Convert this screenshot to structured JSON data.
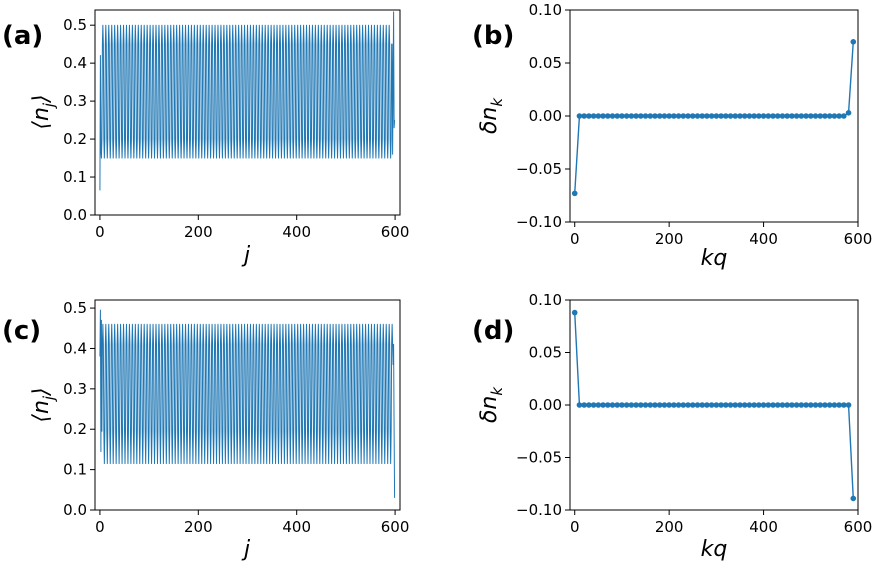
{
  "colors": {
    "series": "#1f77b4",
    "axis": "#000000",
    "background": "#ffffff"
  },
  "chart_data": [
    {
      "panel_label": "(a)",
      "type": "line",
      "xlabel": "j",
      "ylabel": "⟨n_j⟩",
      "xlim": [
        -10,
        610
      ],
      "ylim": [
        0.0,
        0.54
      ],
      "xticks": [
        0,
        200,
        400,
        600
      ],
      "xtick_labels": [
        "0",
        "200",
        "400",
        "600"
      ],
      "yticks": [
        0.0,
        0.1,
        0.2,
        0.3,
        0.4,
        0.5
      ],
      "ytick_labels": [
        "0.0",
        "0.1",
        "0.2",
        "0.3",
        "0.4",
        "0.5"
      ],
      "grid": false,
      "series": [
        {
          "n_points": 600,
          "x_start": 0,
          "x_step": 1,
          "period": 6,
          "pattern": [
            0.5,
            0.45,
            0.2,
            0.15,
            0.2,
            0.45
          ],
          "edge_points": [
            {
              "x": 0,
              "y": 0.065
            },
            {
              "x": 1,
              "y": 0.42
            },
            {
              "x": 2,
              "y": 0.17
            },
            {
              "x": 594,
              "y": 0.45
            },
            {
              "x": 595,
              "y": 0.16
            },
            {
              "x": 596,
              "y": 0.36
            },
            {
              "x": 597,
              "y": 0.535
            },
            {
              "x": 598,
              "y": 0.23
            },
            {
              "x": 599,
              "y": 0.25
            }
          ]
        }
      ]
    },
    {
      "panel_label": "(b)",
      "type": "line",
      "markers": true,
      "xlabel": "kq",
      "ylabel": "δn_k",
      "xlim": [
        -10,
        600
      ],
      "ylim": [
        -0.1,
        0.1
      ],
      "xticks": [
        0,
        200,
        400,
        600
      ],
      "xtick_labels": [
        "0",
        "200",
        "400",
        "600"
      ],
      "yticks": [
        -0.1,
        -0.05,
        0.0,
        0.05,
        0.1
      ],
      "ytick_labels": [
        "−0.10",
        "−0.05",
        "0.00",
        "0.05",
        "0.10"
      ],
      "grid": false,
      "series": [
        {
          "n_points": 60,
          "x_start": 0,
          "x_step": 10,
          "baseline": 0.0,
          "edge_points": [
            {
              "x": 0,
              "y": -0.073
            },
            {
              "x": 580,
              "y": 0.003
            },
            {
              "x": 590,
              "y": 0.07
            }
          ]
        }
      ]
    },
    {
      "panel_label": "(c)",
      "type": "line",
      "xlabel": "j",
      "ylabel": "⟨n_j⟩",
      "xlim": [
        -10,
        610
      ],
      "ylim": [
        0.0,
        0.52
      ],
      "xticks": [
        0,
        200,
        400,
        600
      ],
      "xtick_labels": [
        "0",
        "200",
        "400",
        "600"
      ],
      "yticks": [
        0.0,
        0.1,
        0.2,
        0.3,
        0.4,
        0.5
      ],
      "ytick_labels": [
        "0.0",
        "0.1",
        "0.2",
        "0.3",
        "0.4",
        "0.5"
      ],
      "grid": false,
      "series": [
        {
          "n_points": 600,
          "x_start": 0,
          "x_step": 1,
          "period": 6,
          "pattern": [
            0.46,
            0.41,
            0.195,
            0.115,
            0.195,
            0.41
          ],
          "edge_points": [
            {
              "x": 0,
              "y": 0.38
            },
            {
              "x": 1,
              "y": 0.495
            },
            {
              "x": 2,
              "y": 0.145
            },
            {
              "x": 3,
              "y": 0.47
            },
            {
              "x": 596,
              "y": 0.36
            },
            {
              "x": 597,
              "y": 0.41
            },
            {
              "x": 598,
              "y": 0.2
            },
            {
              "x": 599,
              "y": 0.03
            }
          ]
        }
      ]
    },
    {
      "panel_label": "(d)",
      "type": "line",
      "markers": true,
      "xlabel": "kq",
      "ylabel": "δn_k",
      "xlim": [
        -10,
        600
      ],
      "ylim": [
        -0.1,
        0.1
      ],
      "xticks": [
        0,
        200,
        400,
        600
      ],
      "xtick_labels": [
        "0",
        "200",
        "400",
        "600"
      ],
      "yticks": [
        -0.1,
        -0.05,
        0.0,
        0.05,
        0.1
      ],
      "ytick_labels": [
        "−0.10",
        "−0.05",
        "0.00",
        "0.05",
        "0.10"
      ],
      "grid": false,
      "series": [
        {
          "n_points": 60,
          "x_start": 0,
          "x_step": 10,
          "baseline": 0.0,
          "edge_points": [
            {
              "x": 0,
              "y": 0.088
            },
            {
              "x": 590,
              "y": -0.089
            }
          ]
        }
      ]
    }
  ]
}
